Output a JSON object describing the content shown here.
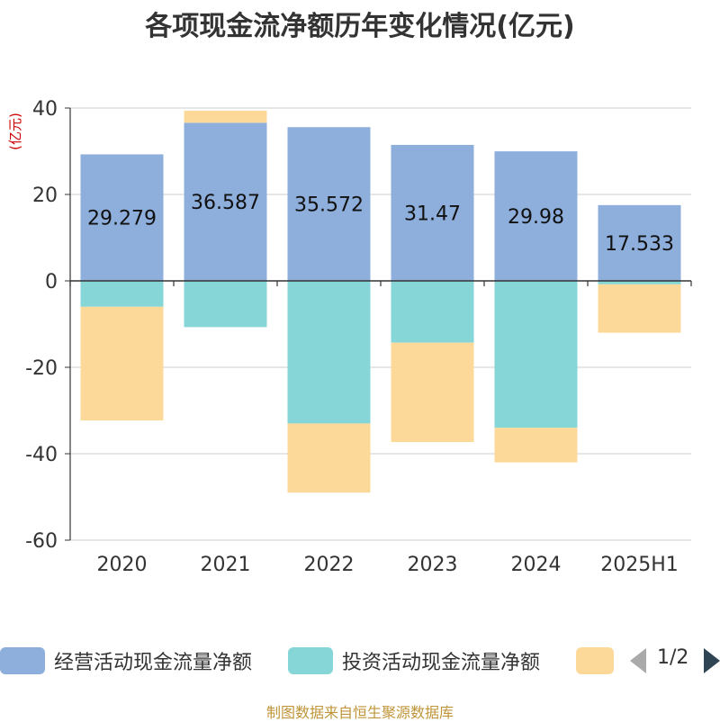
{
  "chart_data": {
    "type": "bar",
    "title": "各项现金流净额历年变化情况(亿元)",
    "ylabel": "(亿元)",
    "categories": [
      "2020",
      "2021",
      "2022",
      "2023",
      "2024",
      "2025H1"
    ],
    "ylim": [
      -60,
      40
    ],
    "yticks": [
      40,
      20,
      0,
      -20,
      -40,
      -60
    ],
    "stacked": true,
    "grid": true,
    "series": [
      {
        "name": "经营活动现金流量净额",
        "color": "#8eaedc",
        "values": [
          29.279,
          36.587,
          35.572,
          31.47,
          29.98,
          17.533
        ],
        "labels": [
          "29.279",
          "36.587",
          "35.572",
          "31.47",
          "29.98",
          "17.533"
        ]
      },
      {
        "name": "投资活动现金流量净额",
        "color": "#86d6d8",
        "values": [
          -6.0,
          -10.7,
          -33.0,
          -14.3,
          -34.0,
          -0.8
        ]
      },
      {
        "name": "",
        "color": "#fdd999",
        "values": [
          -26.3,
          2.8,
          -16.0,
          -23.0,
          -8.0,
          -11.2
        ]
      }
    ]
  },
  "legend": {
    "page": "1/2"
  },
  "source": "制图数据来自恒生聚源数据库"
}
